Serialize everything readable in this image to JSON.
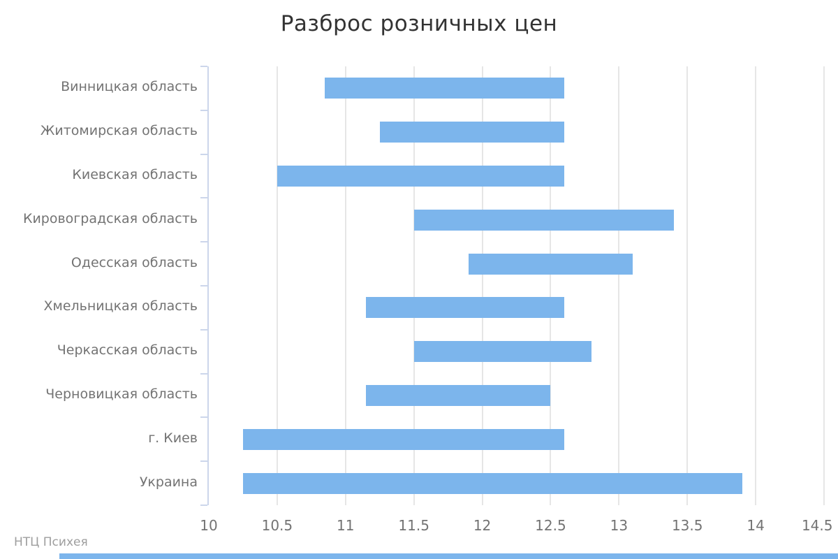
{
  "title": "Разброс розничных цен",
  "credit": "НТЦ Психея",
  "colors": {
    "bar": "#7cb5ec",
    "grid": "#e6e6e6",
    "axis_line": "#ccd6eb",
    "title_text": "#333333",
    "label_text": "#737373",
    "credit_text": "#9e9e9e",
    "bottom_strip": "#7cb5ec"
  },
  "chart_data": {
    "type": "bar",
    "orientation": "horizontal-range",
    "title": "Разброс розничных цен",
    "categories": [
      "Винницкая область",
      "Житомирская область",
      "Киевская область",
      "Кировоградская область",
      "Одесская область",
      "Хмельницкая область",
      "Черкасская область",
      "Черновицкая область",
      "г. Киев",
      "Украина"
    ],
    "series": [
      {
        "name": "Разброс розничных цен",
        "values": [
          [
            10.85,
            12.6
          ],
          [
            11.25,
            12.6
          ],
          [
            10.5,
            12.6
          ],
          [
            11.5,
            13.4
          ],
          [
            11.9,
            13.1
          ],
          [
            11.15,
            12.6
          ],
          [
            11.5,
            12.8
          ],
          [
            11.15,
            12.5
          ],
          [
            10.25,
            12.6
          ],
          [
            10.25,
            13.9
          ]
        ]
      }
    ],
    "xlim": [
      10,
      14.5
    ],
    "x_ticks": [
      10,
      10.5,
      11,
      11.5,
      12,
      12.5,
      13,
      13.5,
      14,
      14.5
    ],
    "xlabel": "",
    "ylabel": "",
    "grid": true,
    "legend": "none"
  }
}
